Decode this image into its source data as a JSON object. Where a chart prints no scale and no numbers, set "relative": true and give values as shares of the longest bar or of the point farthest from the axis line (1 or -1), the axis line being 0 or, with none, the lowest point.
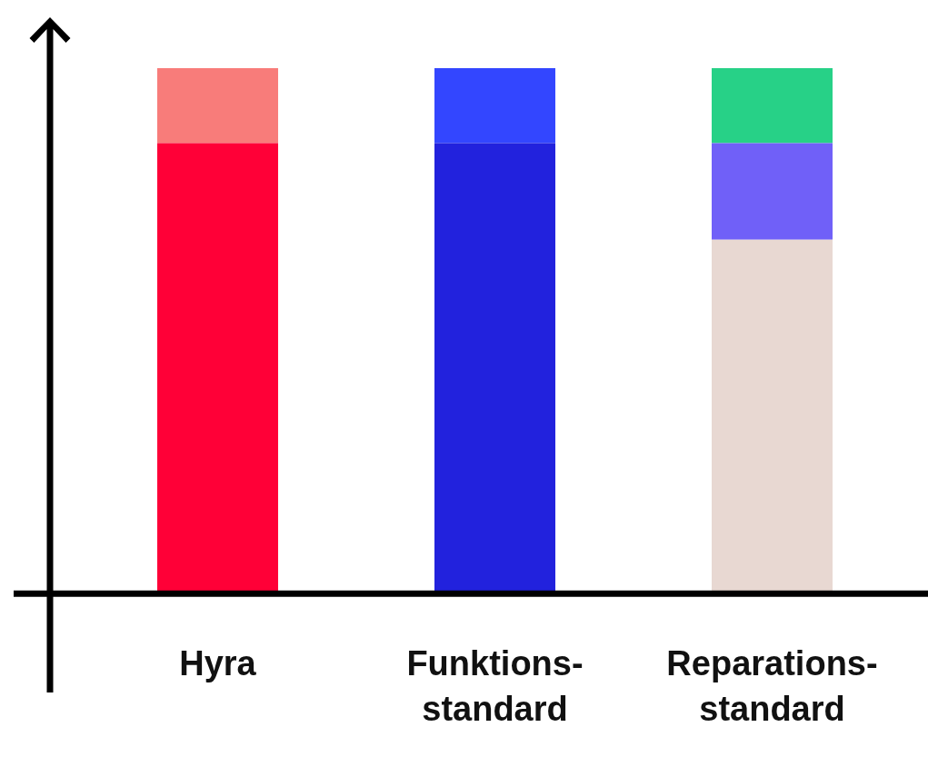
{
  "chart_data": {
    "type": "bar",
    "stacked": true,
    "relative": true,
    "categories": [
      "Hyra",
      "Funktions-standard",
      "Reparations-standard"
    ],
    "series": [
      {
        "colors": [
          "#ff0037",
          "#2222dd",
          "#e8d8d2"
        ],
        "values": [
          0.857,
          0.857,
          0.673
        ]
      },
      {
        "colors": [
          "#f87c7a",
          "#3346ff",
          "#7060f8"
        ],
        "values": [
          0.143,
          0.143,
          0.184
        ]
      },
      {
        "colors": [
          "#f87c7a",
          "#3346ff",
          "#27d187"
        ],
        "values": [
          null,
          null,
          0.143
        ]
      }
    ]
  }
}
